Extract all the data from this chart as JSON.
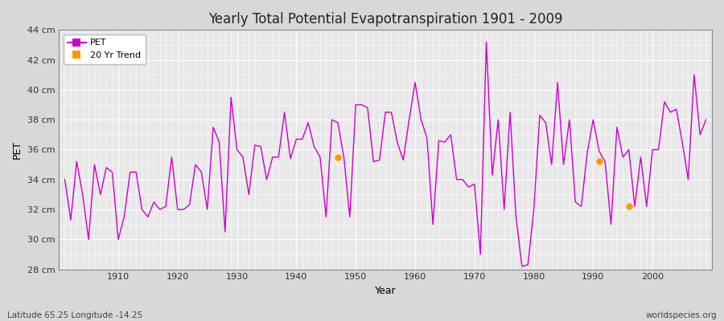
{
  "title": "Yearly Total Potential Evapotranspiration 1901 - 2009",
  "xlabel": "Year",
  "ylabel": "PET",
  "bottom_left_label": "Latitude 65.25 Longitude -14.25",
  "bottom_right_label": "worldspecies.org",
  "line_color": "#cc00cc",
  "trend_color": "#ff9900",
  "bg_outer": "#d8d8d8",
  "bg_plot": "#e8e8e8",
  "grid_color": "#ffffff",
  "ylim": [
    28,
    44
  ],
  "ytick_labels": [
    "28 cm",
    "30 cm",
    "32 cm",
    "34 cm",
    "36 cm",
    "38 cm",
    "40 cm",
    "42 cm",
    "44 cm"
  ],
  "ytick_values": [
    28,
    30,
    32,
    34,
    36,
    38,
    40,
    42,
    44
  ],
  "years": [
    1901,
    1902,
    1903,
    1904,
    1905,
    1906,
    1907,
    1908,
    1909,
    1910,
    1911,
    1912,
    1913,
    1914,
    1915,
    1916,
    1917,
    1918,
    1919,
    1920,
    1921,
    1922,
    1923,
    1924,
    1925,
    1926,
    1927,
    1928,
    1929,
    1930,
    1931,
    1932,
    1933,
    1934,
    1935,
    1936,
    1937,
    1938,
    1939,
    1940,
    1941,
    1942,
    1943,
    1944,
    1945,
    1946,
    1947,
    1948,
    1949,
    1950,
    1951,
    1952,
    1953,
    1954,
    1955,
    1956,
    1957,
    1958,
    1959,
    1960,
    1961,
    1962,
    1963,
    1964,
    1965,
    1966,
    1967,
    1968,
    1969,
    1970,
    1971,
    1972,
    1973,
    1974,
    1975,
    1976,
    1977,
    1978,
    1979,
    1980,
    1981,
    1982,
    1983,
    1984,
    1985,
    1986,
    1987,
    1988,
    1989,
    1990,
    1991,
    1992,
    1993,
    1994,
    1995,
    1996,
    1997,
    1998,
    1999,
    2000,
    2001,
    2002,
    2003,
    2004,
    2005,
    2006,
    2007,
    2008,
    2009
  ],
  "pet_values": [
    34.0,
    31.3,
    35.2,
    33.0,
    30.0,
    35.0,
    33.0,
    34.8,
    34.5,
    30.0,
    31.5,
    34.5,
    34.5,
    32.0,
    31.5,
    32.5,
    32.0,
    32.2,
    35.5,
    32.0,
    32.0,
    32.3,
    35.0,
    34.5,
    32.0,
    37.5,
    36.5,
    30.5,
    39.5,
    36.0,
    35.5,
    33.0,
    36.3,
    36.2,
    34.0,
    35.5,
    35.5,
    38.5,
    35.4,
    36.7,
    36.7,
    37.8,
    36.2,
    35.5,
    31.5,
    38.0,
    37.8,
    35.5,
    31.5,
    39.0,
    39.0,
    38.8,
    35.2,
    35.3,
    38.5,
    38.5,
    36.5,
    35.3,
    38.0,
    40.5,
    38.0,
    36.8,
    31.0,
    36.6,
    36.5,
    37.0,
    34.0,
    34.0,
    33.5,
    33.7,
    29.0,
    43.2,
    34.3,
    38.0,
    32.0,
    38.5,
    31.5,
    28.2,
    28.3,
    32.0,
    38.3,
    37.8,
    35.0,
    40.5,
    35.0,
    38.0,
    32.5,
    32.2,
    35.8,
    38.0,
    35.9,
    35.2,
    31.0,
    37.5,
    35.5,
    36.0,
    32.2,
    35.5,
    32.2,
    36.0,
    36.0,
    39.2,
    38.5,
    38.7,
    36.5,
    34.0,
    41.0,
    37.0,
    38.0
  ],
  "trend_points": [
    [
      1947,
      35.5
    ],
    [
      1991,
      35.2
    ],
    [
      1996,
      32.2
    ]
  ]
}
